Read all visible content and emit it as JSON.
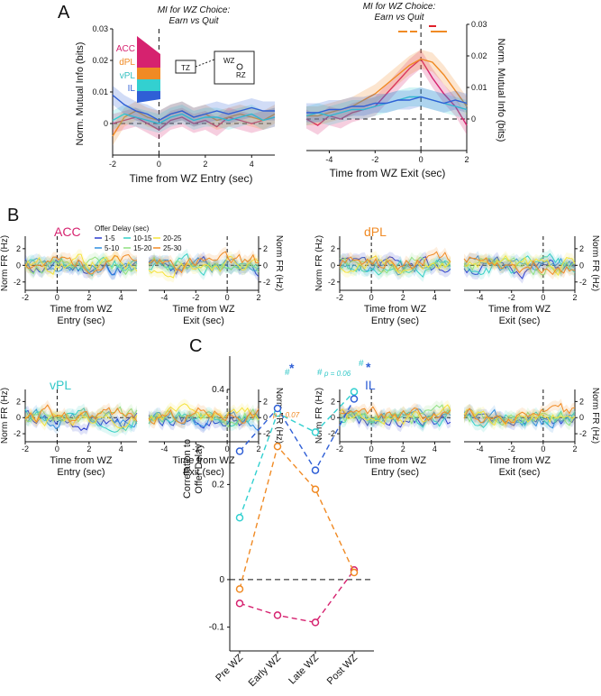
{
  "colors": {
    "acc": "#d6226f",
    "dpl": "#f08a24",
    "vpl": "#33d0d0",
    "il": "#2f5fd6",
    "red": "#e0202a"
  },
  "panel_letters": [
    "A",
    "B",
    "C"
  ],
  "panelA": {
    "left_title": [
      "MI for WZ Choice:",
      "Earn vs Quit"
    ],
    "right_title": [
      "MI for WZ Choice:",
      "Earn vs Quit"
    ],
    "left_ylabel": "Norm. Mutual Info (bits)",
    "right_ylabel": "Norm. Mutual Info (bits)",
    "left_xlabel": "Time from WZ Entry (sec)",
    "right_xlabel": "Time from WZ Exit (sec)",
    "legend": [
      "ACC",
      "dPL",
      "vPL",
      "IL"
    ],
    "maze_labels": {
      "tz": "TZ",
      "wz": "WZ",
      "rz": "RZ"
    }
  },
  "panelB": {
    "region_labels": [
      "ACC",
      "dPL",
      "vPL",
      "IL"
    ],
    "legend_title": "Offer Delay (sec)",
    "legend_items": [
      "1-5",
      "5-10",
      "10-15",
      "15-20",
      "20-25",
      "25-30"
    ],
    "legend_colors": [
      "#2b3ccf",
      "#2f8fe0",
      "#33cfc5",
      "#8fe080",
      "#f5e23a",
      "#f08a24"
    ],
    "ylabel_left": "Norm FR (Hz)",
    "ylabel_right": "Norm FR (Hz)",
    "xlabel_entry": [
      "Time from WZ",
      "Entry (sec)"
    ],
    "xlabel_exit": [
      "Time from WZ",
      "Exit (sec)"
    ]
  },
  "panelC": {
    "ylabel": [
      "Correlation to",
      "Offer Delay"
    ],
    "p_vpl": "p = 0.06",
    "p_dpl": "p = 0.07",
    "star": "*",
    "hash": "#"
  },
  "chart_data": [
    {
      "type": "line",
      "title": "MI for WZ Choice: Earn vs Quit",
      "xlabel": "Time from WZ Entry (sec)",
      "ylabel": "Norm. Mutual Info (bits)",
      "xlim": [
        -2,
        5
      ],
      "ylim": [
        -0.01,
        0.03
      ],
      "xticks": [
        -2,
        0,
        2,
        4
      ],
      "yticks": [
        0,
        0.01,
        0.02,
        0.03
      ],
      "x": [
        -2,
        -1.5,
        -1,
        -0.5,
        0,
        0.5,
        1,
        1.5,
        2,
        2.5,
        3,
        3.5,
        4,
        4.5,
        5
      ],
      "series": [
        {
          "name": "ACC",
          "values": [
            0.0,
            0.001,
            0.002,
            0.0,
            -0.002,
            0.001,
            0.002,
            0.0,
            0.001,
            -0.001,
            0.002,
            0.001,
            0.0,
            0.001,
            0.002
          ]
        },
        {
          "name": "dPL",
          "values": [
            -0.004,
            0.002,
            0.004,
            0.002,
            0.001,
            0.003,
            0.004,
            0.002,
            0.003,
            0.001,
            0.002,
            0.003,
            0.002,
            0.001,
            0.003
          ]
        },
        {
          "name": "vPL",
          "values": [
            0.001,
            0.003,
            0.002,
            0.001,
            0.0,
            0.002,
            0.003,
            0.001,
            0.002,
            0.002,
            0.001,
            0.002,
            0.003,
            0.001,
            0.002
          ]
        },
        {
          "name": "IL",
          "values": [
            0.009,
            0.006,
            0.004,
            0.003,
            0.001,
            0.003,
            0.004,
            0.002,
            0.003,
            0.004,
            0.003,
            0.004,
            0.005,
            0.004,
            0.004
          ]
        }
      ]
    },
    {
      "type": "line",
      "title": "MI for WZ Choice: Earn vs Quit",
      "xlabel": "Time from WZ Exit (sec)",
      "ylabel": "Norm. Mutual Info (bits)",
      "xlim": [
        -5,
        2
      ],
      "ylim": [
        -0.01,
        0.03
      ],
      "xticks": [
        -4,
        -2,
        0,
        2
      ],
      "yticks": [
        0,
        0.01,
        0.02,
        0.03
      ],
      "x": [
        -5,
        -4.5,
        -4,
        -3.5,
        -3,
        -2.5,
        -2,
        -1.5,
        -1,
        -0.5,
        0,
        0.5,
        1,
        1.5,
        2
      ],
      "series": [
        {
          "name": "ACC",
          "values": [
            0.0,
            -0.002,
            0.001,
            0.0,
            0.002,
            0.003,
            0.004,
            0.008,
            0.012,
            0.016,
            0.019,
            0.013,
            0.008,
            0.004,
            -0.002
          ]
        },
        {
          "name": "dPL",
          "values": [
            0.001,
            0.001,
            0.002,
            0.003,
            0.004,
            0.006,
            0.008,
            0.011,
            0.014,
            0.017,
            0.019,
            0.018,
            0.014,
            0.009,
            0.004
          ]
        },
        {
          "name": "vPL",
          "values": [
            0.001,
            0.002,
            0.001,
            0.002,
            0.003,
            0.003,
            0.004,
            0.005,
            0.006,
            0.007,
            0.007,
            0.006,
            0.005,
            0.004,
            0.003
          ]
        },
        {
          "name": "IL",
          "values": [
            0.002,
            0.002,
            0.003,
            0.003,
            0.004,
            0.004,
            0.005,
            0.005,
            0.006,
            0.006,
            0.007,
            0.006,
            0.005,
            0.006,
            0.005
          ]
        }
      ]
    },
    {
      "type": "line",
      "title": "Correlation to Offer Delay",
      "ylabel": "Correlation to Offer Delay",
      "categories": [
        "Pre WZ",
        "Early WZ",
        "Late WZ",
        "Post WZ"
      ],
      "ylim": [
        -0.15,
        0.47
      ],
      "yticks": [
        -0.1,
        0,
        0.2,
        0.4
      ],
      "series": [
        {
          "name": "ACC",
          "values": [
            -0.05,
            -0.075,
            -0.09,
            0.02
          ]
        },
        {
          "name": "dPL",
          "values": [
            -0.02,
            0.28,
            0.19,
            0.015
          ]
        },
        {
          "name": "vPL",
          "values": [
            0.13,
            0.35,
            0.31,
            0.395
          ]
        },
        {
          "name": "IL",
          "values": [
            0.27,
            0.36,
            0.23,
            0.38
          ]
        }
      ]
    }
  ]
}
